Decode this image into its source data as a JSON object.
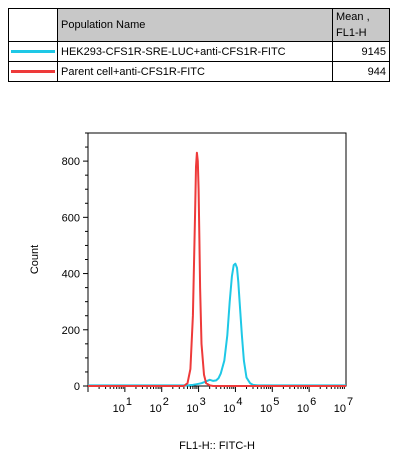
{
  "table": {
    "header": {
      "name": "Population Name",
      "mean": "Mean ,\nFL1-H"
    },
    "rows": [
      {
        "name": "HEK293-CFS1R-SRE-LUC+anti-CFS1R-FITC",
        "mean": "9145",
        "color": "#1ec8e6"
      },
      {
        "name": "Parent cell+anti-CFS1R-FITC",
        "mean": "944",
        "color": "#ee3a3a"
      }
    ]
  },
  "chart_data": {
    "type": "line",
    "xlabel": "FL1-H:: FITC-H",
    "ylabel": "Count",
    "x_scale": "log",
    "xlim": [
      1,
      10000000
    ],
    "ylim": [
      0,
      900
    ],
    "y_ticks": [
      0,
      200,
      400,
      600,
      800
    ],
    "x_ticks": [
      {
        "value": 10,
        "base": "10",
        "exp": "1"
      },
      {
        "value": 100,
        "base": "10",
        "exp": "2"
      },
      {
        "value": 1000,
        "base": "10",
        "exp": "3"
      },
      {
        "value": 10000,
        "base": "10",
        "exp": "4"
      },
      {
        "value": 100000,
        "base": "10",
        "exp": "5"
      },
      {
        "value": 1000000,
        "base": "10",
        "exp": "6"
      },
      {
        "value": 10000000,
        "base": "10",
        "exp": "7"
      }
    ],
    "series": [
      {
        "name": "HEK293-CFS1R-SRE-LUC+anti-CFS1R-FITC",
        "color": "#1ec8e6",
        "x": [
          1,
          500,
          700,
          850,
          1000,
          1200,
          1500,
          2000,
          2500,
          3000,
          3500,
          4000,
          5000,
          6000,
          7000,
          8000,
          9000,
          10000,
          11000,
          12000,
          13000,
          15000,
          17000,
          20000,
          25000,
          30000,
          40000,
          10000000
        ],
        "y": [
          2,
          2,
          4,
          6,
          8,
          10,
          15,
          22,
          18,
          20,
          28,
          45,
          90,
          180,
          300,
          390,
          430,
          435,
          420,
          370,
          300,
          180,
          90,
          30,
          10,
          4,
          2,
          2
        ]
      },
      {
        "name": "Parent cell+anti-CFS1R-FITC",
        "color": "#ee3a3a",
        "x": [
          1,
          400,
          500,
          600,
          700,
          800,
          850,
          900,
          950,
          1000,
          1050,
          1100,
          1200,
          1400,
          1600,
          2000,
          2500,
          10000000
        ],
        "y": [
          0,
          0,
          10,
          60,
          250,
          600,
          780,
          830,
          800,
          700,
          520,
          350,
          150,
          40,
          10,
          2,
          0,
          0
        ]
      }
    ]
  }
}
